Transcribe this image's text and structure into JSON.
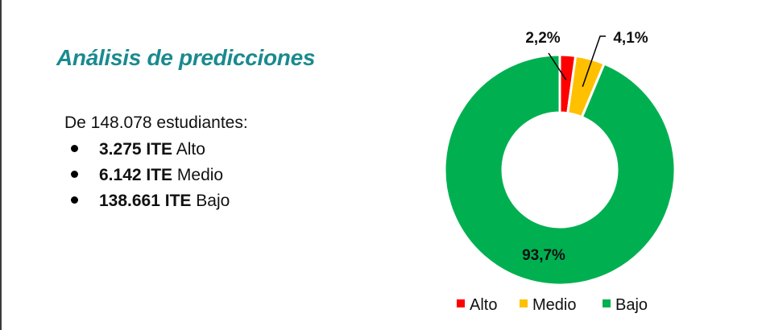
{
  "title": "Análisis de predicciones",
  "intro": "De 148.078 estudiantes:",
  "items": [
    {
      "bold": "3.275 ITE",
      "text": " Alto"
    },
    {
      "bold": "6.142 ITE",
      "text": " Medio"
    },
    {
      "bold": "138.661 ITE",
      "text": " Bajo"
    }
  ],
  "chart_data": {
    "type": "pie",
    "variant": "donut",
    "categories": [
      "Alto",
      "Medio",
      "Bajo"
    ],
    "values": [
      2.2,
      4.1,
      93.7
    ],
    "data_labels": [
      "2,2%",
      "4,1%",
      "93,7%"
    ],
    "colors": [
      "#ff0000",
      "#ffc000",
      "#00b050"
    ],
    "legend": "bottom"
  }
}
